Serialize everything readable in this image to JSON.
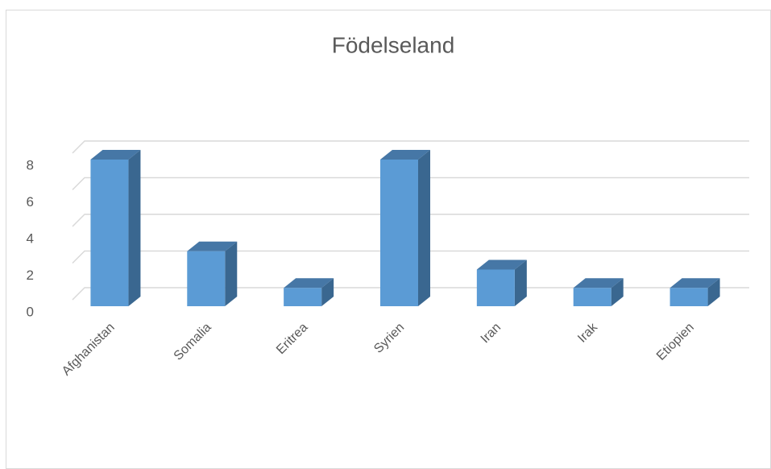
{
  "chart_data": {
    "type": "bar3d",
    "title": "Födelseland",
    "categories": [
      "Afghanistan",
      "Somalia",
      "Eritrea",
      "Syrien",
      "Iran",
      "Irak",
      "Etiopien"
    ],
    "values": [
      8,
      3,
      1,
      8,
      2,
      1,
      1
    ],
    "color": "#5b9bd5",
    "ylim": [
      0,
      8
    ],
    "yticks": [
      0,
      2,
      4,
      6,
      8
    ],
    "grid": true
  }
}
